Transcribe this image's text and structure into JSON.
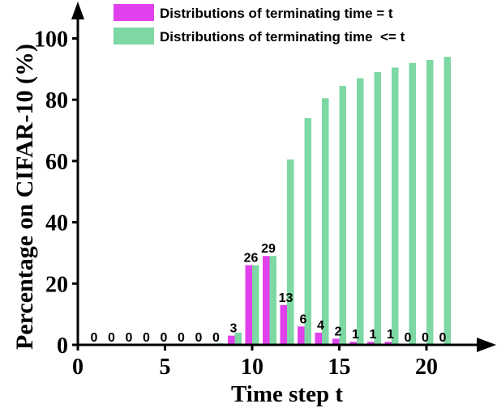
{
  "chart_data": {
    "type": "bar",
    "xlabel": "Time step t",
    "ylabel": "Percentage on CIFAR-10 (%)",
    "x": [
      1,
      2,
      3,
      4,
      5,
      6,
      7,
      8,
      9,
      10,
      11,
      12,
      13,
      14,
      15,
      16,
      17,
      18,
      19,
      20,
      21
    ],
    "xlim": [
      0,
      22
    ],
    "ylim": [
      0,
      110
    ],
    "x_ticks": [
      0,
      5,
      10,
      15,
      20
    ],
    "y_ticks": [
      0,
      20,
      40,
      60,
      80,
      100
    ],
    "legend_position": "top-right",
    "series": [
      {
        "name": "Distributions of terminating time = t",
        "color": "#e141ec",
        "values": [
          0,
          0,
          0,
          0,
          0,
          0,
          0,
          0,
          3,
          26,
          29,
          13,
          6,
          4,
          2,
          1,
          1,
          1,
          0,
          0,
          0
        ],
        "labels": [
          "0",
          "0",
          "0",
          "0",
          "0",
          "0",
          "0",
          "0",
          "3",
          "26",
          "29",
          "13",
          "6",
          "4",
          "2",
          "1",
          "1",
          "1",
          "0",
          "0",
          "0"
        ]
      },
      {
        "name": "Distributions of terminating time  <= t",
        "color": "#7dd8a3",
        "values": [
          0,
          0,
          0,
          0,
          0,
          0,
          0,
          0.5,
          4,
          26,
          29,
          60.5,
          74,
          80.5,
          84.5,
          87,
          89,
          90.5,
          92,
          93,
          94
        ]
      }
    ]
  }
}
